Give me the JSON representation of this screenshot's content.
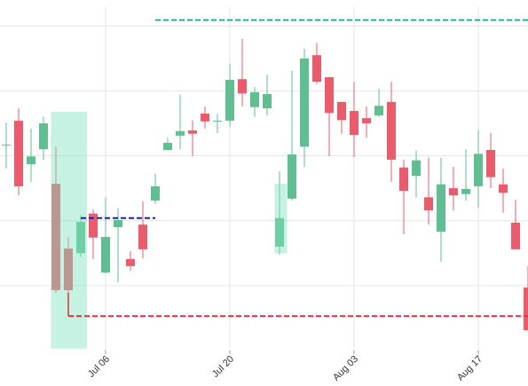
{
  "chart_data": {
    "type": "candlestick",
    "categories": [
      null,
      null,
      null,
      null,
      null,
      null,
      null,
      null,
      "Jul 06",
      null,
      null,
      null,
      null,
      null,
      null,
      null,
      null,
      null,
      "Jul 20",
      null,
      null,
      null,
      null,
      null,
      null,
      null,
      null,
      null,
      "Aug 03",
      null,
      null,
      null,
      null,
      null,
      null,
      null,
      null,
      null,
      "Aug 17",
      null,
      null,
      null,
      null
    ],
    "open": [
      31.6,
      35.4,
      28.7,
      31.0,
      25.7,
      15.7,
      15.0,
      21.1,
      12.0,
      19.0,
      14.1,
      19.4,
      23.1,
      30.9,
      33.1,
      33.9,
      36.5,
      35.3,
      35.4,
      41.8,
      37.5,
      37.3,
      16.0,
      23.4,
      31.4,
      45.5,
      42.1,
      38.3,
      36.9,
      35.8,
      36.2,
      38.3,
      28.2,
      26.9,
      23.6,
      18.3,
      25.0,
      24.1,
      25.3,
      30.9,
      25.6,
      19.7,
      9.7
    ],
    "close": [
      31.7,
      25.3,
      29.9,
      35.0,
      9.3,
      9.3,
      19.8,
      17.4,
      17.5,
      20.1,
      13.0,
      15.6,
      25.3,
      32.0,
      33.8,
      33.4,
      35.3,
      35.4,
      41.7,
      39.6,
      39.8,
      39.5,
      20.4,
      30.2,
      45.0,
      41.4,
      36.6,
      35.5,
      33.2,
      35.0,
      37.7,
      29.4,
      24.6,
      29.3,
      21.6,
      25.6,
      23.9,
      24.9,
      30.3,
      26.7,
      24.3,
      15.6,
      3.1
    ],
    "high": [
      35.1,
      37.3,
      34.2,
      36.0,
      31.4,
      17.4,
      20.9,
      21.7,
      23.6,
      21.9,
      15.3,
      23.0,
      27.2,
      32.8,
      39.4,
      35.5,
      37.6,
      36.5,
      44.2,
      48.0,
      40.6,
      42.5,
      27.6,
      43.1,
      46.5,
      47.4,
      42.2,
      38.3,
      41.4,
      37.6,
      40.3,
      41.4,
      29.4,
      30.8,
      29.7,
      29.7,
      28.3,
      31.0,
      33.9,
      33.5,
      28.0,
      23.2,
      13.0
    ],
    "low": [
      28.0,
      23.9,
      26.0,
      29.4,
      8.9,
      8.9,
      14.4,
      14.1,
      11.9,
      10.5,
      12.3,
      14.2,
      22.6,
      30.8,
      31.0,
      29.9,
      34.2,
      33.5,
      34.4,
      37.6,
      36.0,
      36.2,
      14.8,
      23.1,
      28.3,
      41.1,
      29.9,
      33.4,
      29.8,
      32.8,
      36.0,
      26.0,
      17.9,
      23.6,
      19.4,
      13.7,
      21.6,
      23.1,
      22.0,
      25.0,
      21.2,
      15.6,
      3.1
    ],
    "up_color": "#5fbf91",
    "down_color": "#ec5b6b",
    "ylim": [
      0,
      54
    ],
    "yticks": [
      10,
      20,
      30,
      40,
      50
    ],
    "grid": true,
    "levels": [
      {
        "value": 50.9,
        "color": "#20b38f"
      },
      {
        "value": 5.3,
        "color": "#e0303c"
      },
      {
        "value": 20.4,
        "color": "#1020c8"
      }
    ],
    "zones": [
      {
        "from": 36.8,
        "to": 0.3,
        "color": "#7fe3c0"
      },
      {
        "from": 25.7,
        "to": 15.0,
        "color": "#7fe3c0"
      }
    ]
  }
}
